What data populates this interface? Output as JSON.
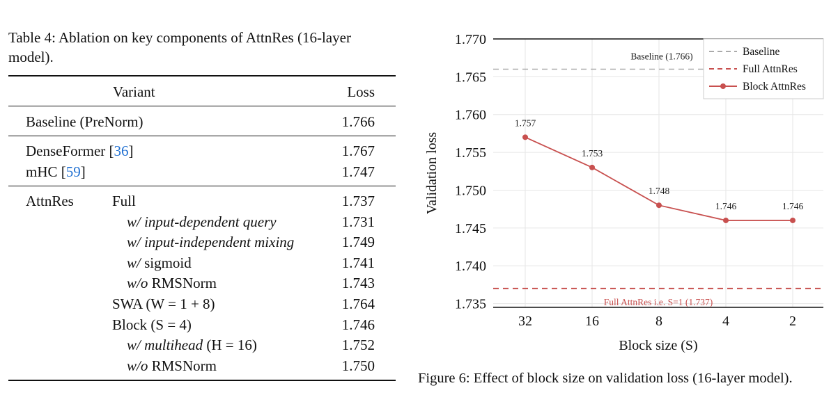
{
  "table": {
    "caption": "Table 4: Ablation on key components of AttnRes (16-layer model).",
    "header": {
      "variant": "Variant",
      "loss": "Loss"
    },
    "groups": [
      {
        "rows": [
          {
            "group": "",
            "label": "Baseline (PreNorm)",
            "loss": "1.766"
          }
        ]
      },
      {
        "rows": [
          {
            "group": "",
            "label_prefix": "DenseFormer [",
            "ref": "36",
            "label_suffix": "]",
            "loss": "1.767"
          },
          {
            "group": "",
            "label_prefix": "mHC [",
            "ref": "59",
            "label_suffix": "]",
            "loss": "1.747"
          }
        ]
      },
      {
        "rows": [
          {
            "group": "AttnRes",
            "label": "Full",
            "loss": "1.737"
          },
          {
            "group": "",
            "italic": "w/ input-dependent query",
            "label": "",
            "loss": "1.731"
          },
          {
            "group": "",
            "italic": "w/ input-independent mixing",
            "label": "",
            "loss": "1.749"
          },
          {
            "group": "",
            "italic": "w/",
            "label": " sigmoid",
            "loss": "1.741"
          },
          {
            "group": "",
            "italic": "w/o",
            "label": " RMSNorm",
            "loss": "1.743"
          },
          {
            "group": "",
            "label": "SWA (W = 1 + 8)",
            "loss": "1.764"
          },
          {
            "group": "",
            "label": "Block (S = 4)",
            "loss": "1.746"
          },
          {
            "group": "",
            "italic": "w/ multihead",
            "label": " (H = 16)",
            "loss": "1.752"
          },
          {
            "group": "",
            "italic": "w/o",
            "label": " RMSNorm",
            "loss": "1.750"
          }
        ]
      }
    ]
  },
  "figure": {
    "caption": "Figure 6: Effect of block size on validation loss (16-layer model)."
  },
  "chart_data": {
    "type": "line",
    "title": "",
    "xlabel": "Block size (S)",
    "ylabel": "Validation loss",
    "categories": [
      "32",
      "16",
      "8",
      "4",
      "2"
    ],
    "series": [
      {
        "name": "Block AttnRes",
        "values": [
          1.757,
          1.753,
          1.748,
          1.746,
          1.746
        ],
        "color": "#c8504f",
        "point_labels": [
          "1.757",
          "1.753",
          "1.748",
          "1.746",
          "1.746"
        ]
      }
    ],
    "reference_lines": [
      {
        "name": "Baseline",
        "value": 1.766,
        "style": "dashed",
        "color": "#aaaaaa",
        "annotation": "Baseline (1.766)"
      },
      {
        "name": "Full AttnRes",
        "value": 1.737,
        "style": "dashed",
        "color": "#c8504f",
        "annotation": "Full AttnRes i.e. S=1 (1.737)"
      }
    ],
    "ylim": [
      1.7345,
      1.77
    ],
    "yticks": [
      "1.735",
      "1.740",
      "1.745",
      "1.750",
      "1.755",
      "1.760",
      "1.765",
      "1.770"
    ],
    "grid": true,
    "legend_position": "top-right",
    "legend": [
      "Baseline",
      "Full AttnRes",
      "Block AttnRes"
    ]
  }
}
